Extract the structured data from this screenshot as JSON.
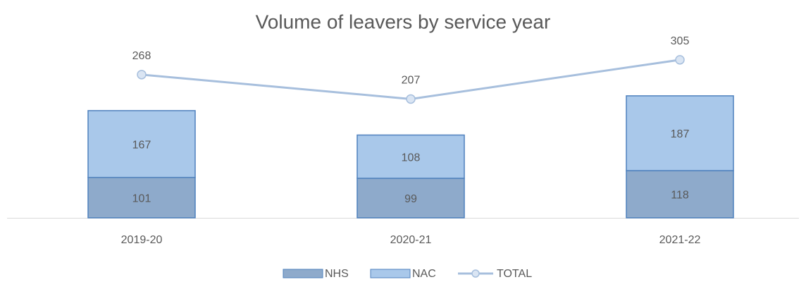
{
  "chart_data": {
    "type": "bar",
    "title": "Volume of leavers by service year",
    "categories": [
      "2019-20",
      "2020-21",
      "2021-22"
    ],
    "stacked": true,
    "series": [
      {
        "name": "NHS",
        "color": "#8eaacb",
        "values": [
          101,
          99,
          118
        ]
      },
      {
        "name": "NAC",
        "color": "#a9c8ea",
        "values": [
          167,
          108,
          187
        ]
      },
      {
        "name": "TOTAL",
        "type": "line",
        "axis": "y2",
        "color": "#a7bfdd",
        "values": [
          268,
          207,
          305
        ]
      }
    ],
    "ylim": [
      0,
      400
    ],
    "y2lim": [
      -90,
      310
    ],
    "legend": "bottom"
  }
}
